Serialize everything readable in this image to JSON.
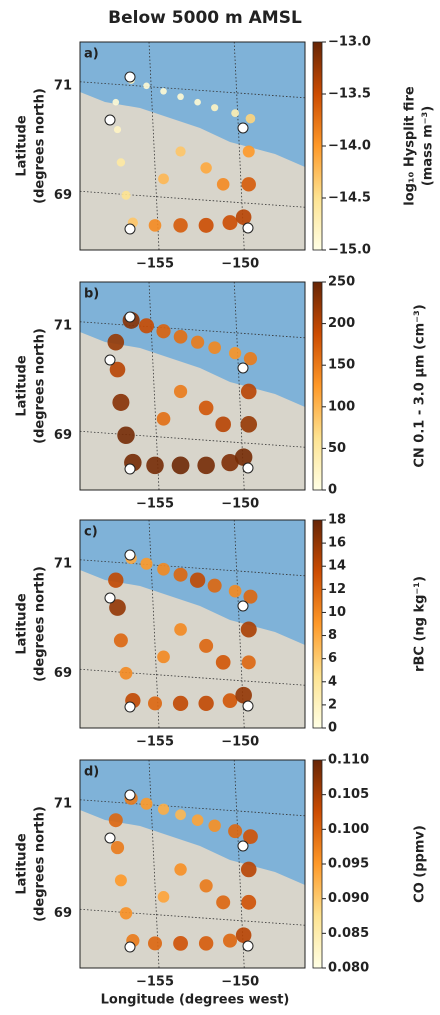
{
  "title": "Below 5000 m AMSL",
  "xlabel": "Longitude (degrees west)",
  "chart_data": [
    {
      "type": "scatter",
      "panel_label": "a)",
      "ylabel": [
        "Latitude",
        "(degrees north)"
      ],
      "colorbar_label": [
        "log₁₀ Hysplit fire",
        "(mass m⁻³)"
      ],
      "colormap": [
        "#ffffe5",
        "#fee391",
        "#fe9929",
        "#cc4c02",
        "#662506"
      ],
      "xlim": [
        -159.4,
        -146.2
      ],
      "ylim": [
        68.0,
        71.8
      ],
      "xticks": [
        {
          "value": -155,
          "label": "−155"
        },
        {
          "value": -150,
          "label": "−150"
        }
      ],
      "yticks": [
        69,
        71
      ],
      "clim": [
        -15.0,
        -13.0
      ],
      "cticks": [
        {
          "value": -15.0,
          "label": "−15.0"
        },
        {
          "value": -14.5,
          "label": "−14.5"
        },
        {
          "value": -14.0,
          "label": "−14.0"
        },
        {
          "value": -13.5,
          "label": "−13.5"
        },
        {
          "value": -13.0,
          "label": "−13.0"
        }
      ],
      "x": [
        -156.4,
        -155.5,
        -154.5,
        -153.5,
        -152.5,
        -151.5,
        -150.3,
        -149.4,
        -157.3,
        -157.2,
        -157.0,
        -156.7,
        -156.3,
        -155.0,
        -153.5,
        -152.0,
        -150.6,
        -149.8,
        -149.5,
        -149.5,
        -153.5,
        -152.0,
        -151.0,
        -154.5
      ],
      "y": [
        71.1,
        71.0,
        70.9,
        70.8,
        70.7,
        70.6,
        70.5,
        70.4,
        70.7,
        70.2,
        69.6,
        69.0,
        68.5,
        68.45,
        68.45,
        68.45,
        68.5,
        68.6,
        69.2,
        69.8,
        69.8,
        69.5,
        69.2,
        69.3
      ],
      "values": [
        -14.8,
        -14.9,
        -14.9,
        -14.9,
        -14.9,
        -14.8,
        -14.7,
        -14.4,
        -14.9,
        -14.8,
        -14.6,
        -14.5,
        -14.3,
        -13.9,
        -13.6,
        -13.5,
        -13.5,
        -13.4,
        -13.6,
        -14.0,
        -14.3,
        -14.1,
        -13.9,
        -14.2
      ]
    },
    {
      "type": "scatter",
      "panel_label": "b)",
      "ylabel": [
        "Latitude",
        "(degrees north)"
      ],
      "colorbar_label": [
        "CN 0.1 - 3.0 μm (cm⁻³)"
      ],
      "colormap": [
        "#ffffe5",
        "#fee391",
        "#fe9929",
        "#cc4c02",
        "#662506"
      ],
      "xlim": [
        -159.4,
        -146.2
      ],
      "ylim": [
        68.0,
        71.8
      ],
      "xticks": [
        {
          "value": -155,
          "label": "−155"
        },
        {
          "value": -150,
          "label": "−150"
        }
      ],
      "yticks": [
        69,
        71
      ],
      "clim": [
        0,
        250
      ],
      "cticks": [
        0,
        50,
        100,
        150,
        200,
        250
      ],
      "x": [
        -156.4,
        -155.5,
        -154.5,
        -153.5,
        -152.5,
        -151.5,
        -150.3,
        -149.4,
        -157.3,
        -157.2,
        -157.0,
        -156.7,
        -156.3,
        -155.0,
        -153.5,
        -152.0,
        -150.6,
        -149.8,
        -149.5,
        -149.5,
        -153.5,
        -152.0,
        -151.0,
        -154.5
      ],
      "y": [
        71.1,
        71.0,
        70.9,
        70.8,
        70.7,
        70.6,
        70.5,
        70.4,
        70.7,
        70.2,
        69.6,
        69.0,
        68.5,
        68.45,
        68.45,
        68.45,
        68.5,
        68.6,
        69.2,
        69.8,
        69.8,
        69.5,
        69.2,
        69.3
      ],
      "values": [
        230,
        190,
        170,
        160,
        150,
        140,
        130,
        150,
        220,
        200,
        230,
        240,
        240,
        240,
        245,
        240,
        235,
        240,
        220,
        200,
        150,
        180,
        200,
        160
      ]
    },
    {
      "type": "scatter",
      "panel_label": "c)",
      "ylabel": [
        "Latitude",
        "(degrees north)"
      ],
      "colorbar_label": [
        "rBC (ng kg⁻¹)"
      ],
      "colormap": [
        "#ffffe5",
        "#fee391",
        "#fe9929",
        "#cc4c02",
        "#662506"
      ],
      "xlim": [
        -159.4,
        -146.2
      ],
      "ylim": [
        68.0,
        71.8
      ],
      "xticks": [
        {
          "value": -155,
          "label": "−155"
        },
        {
          "value": -150,
          "label": "−150"
        }
      ],
      "yticks": [
        69,
        71
      ],
      "clim": [
        0,
        18
      ],
      "cticks": [
        0,
        2,
        4,
        6,
        8,
        10,
        12,
        14,
        16,
        18
      ],
      "x": [
        -156.4,
        -155.5,
        -154.5,
        -153.5,
        -152.5,
        -151.5,
        -150.3,
        -149.4,
        -157.3,
        -157.2,
        -157.0,
        -156.7,
        -156.3,
        -155.0,
        -153.5,
        -152.0,
        -150.6,
        -149.8,
        -149.5,
        -149.5,
        -153.5,
        -152.0,
        -151.0,
        -154.5
      ],
      "y": [
        71.1,
        71.0,
        70.9,
        70.8,
        70.7,
        70.6,
        70.5,
        70.4,
        70.7,
        70.2,
        69.6,
        69.0,
        68.5,
        68.45,
        68.45,
        68.45,
        68.5,
        68.6,
        69.2,
        69.8,
        69.8,
        69.5,
        69.2,
        69.3
      ],
      "values": [
        8,
        9,
        10,
        12,
        14,
        12,
        10,
        12,
        14,
        16,
        12,
        10,
        14,
        12,
        14,
        14,
        13,
        16,
        12,
        15,
        10,
        12,
        13,
        10
      ]
    },
    {
      "type": "scatter",
      "panel_label": "d)",
      "ylabel": [
        "Latitude",
        "(degrees north)"
      ],
      "colorbar_label": [
        "CO (ppmv)"
      ],
      "colormap": [
        "#ffffe5",
        "#fee391",
        "#fe9929",
        "#cc4c02",
        "#662506"
      ],
      "xlim": [
        -159.4,
        -146.2
      ],
      "ylim": [
        68.0,
        71.8
      ],
      "xticks": [
        {
          "value": -155,
          "label": "−155"
        },
        {
          "value": -150,
          "label": "−150"
        }
      ],
      "yticks": [
        69,
        71
      ],
      "clim": [
        0.08,
        0.11
      ],
      "cticks": [
        {
          "value": 0.08,
          "label": "0.080"
        },
        {
          "value": 0.085,
          "label": "0.085"
        },
        {
          "value": 0.09,
          "label": "0.090"
        },
        {
          "value": 0.095,
          "label": "0.095"
        },
        {
          "value": 0.1,
          "label": "0.100"
        },
        {
          "value": 0.105,
          "label": "0.105"
        },
        {
          "value": 0.11,
          "label": "0.110"
        }
      ],
      "x": [
        -156.4,
        -155.5,
        -154.5,
        -153.5,
        -152.5,
        -151.5,
        -150.3,
        -149.4,
        -157.3,
        -157.2,
        -157.0,
        -156.7,
        -156.3,
        -155.0,
        -153.5,
        -152.0,
        -150.6,
        -149.8,
        -149.5,
        -149.5,
        -153.5,
        -152.0,
        -151.0,
        -154.5
      ],
      "y": [
        71.1,
        71.0,
        70.9,
        70.8,
        70.7,
        70.6,
        70.5,
        70.4,
        70.7,
        70.2,
        69.6,
        69.0,
        68.5,
        68.45,
        68.45,
        68.45,
        68.5,
        68.6,
        69.2,
        69.8,
        69.8,
        69.5,
        69.2,
        69.3
      ],
      "values": [
        0.098,
        0.095,
        0.093,
        0.092,
        0.094,
        0.096,
        0.1,
        0.102,
        0.1,
        0.098,
        0.095,
        0.096,
        0.098,
        0.1,
        0.102,
        0.101,
        0.1,
        0.104,
        0.102,
        0.104,
        0.096,
        0.098,
        0.1,
        0.094
      ]
    }
  ]
}
